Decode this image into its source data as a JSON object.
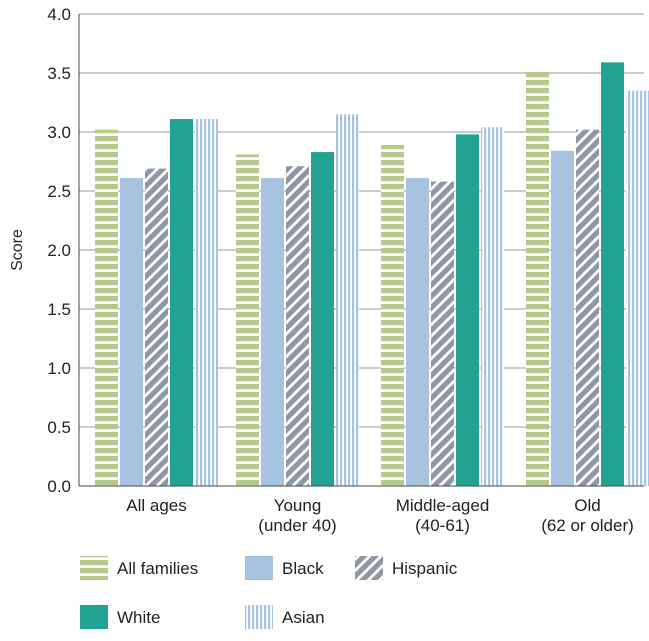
{
  "chart_data": {
    "type": "bar",
    "ylabel": "Score",
    "xlabel": "",
    "ylim": [
      0,
      4.0
    ],
    "yticks": [
      "0.0",
      "0.5",
      "1.0",
      "1.5",
      "2.0",
      "2.5",
      "3.0",
      "3.5",
      "4.0"
    ],
    "grid": true,
    "legend_position": "bottom",
    "categories": [
      [
        "All ages"
      ],
      [
        "Young",
        "(under 40)"
      ],
      [
        "Middle-aged",
        "(40-61)"
      ],
      [
        "Old",
        "(62 or older)"
      ]
    ],
    "series": [
      {
        "name": "All families",
        "values": [
          3.02,
          2.81,
          2.89,
          3.51
        ],
        "color": "#b5c98a",
        "pattern": "horizontal-stripes"
      },
      {
        "name": "Black",
        "values": [
          2.61,
          2.61,
          2.61,
          2.84
        ],
        "color": "#a7c3df",
        "pattern": "solid"
      },
      {
        "name": "Hispanic",
        "values": [
          2.69,
          2.71,
          2.58,
          3.02
        ],
        "color": "#8e97a3",
        "pattern": "diagonal-stripes"
      },
      {
        "name": "White",
        "values": [
          3.11,
          2.83,
          2.98,
          3.59
        ],
        "color": "#23a293",
        "pattern": "solid"
      },
      {
        "name": "Asian",
        "values": [
          3.11,
          3.15,
          3.04,
          3.35
        ],
        "color": "#a7c3df",
        "pattern": "vertical-stripes"
      }
    ]
  }
}
